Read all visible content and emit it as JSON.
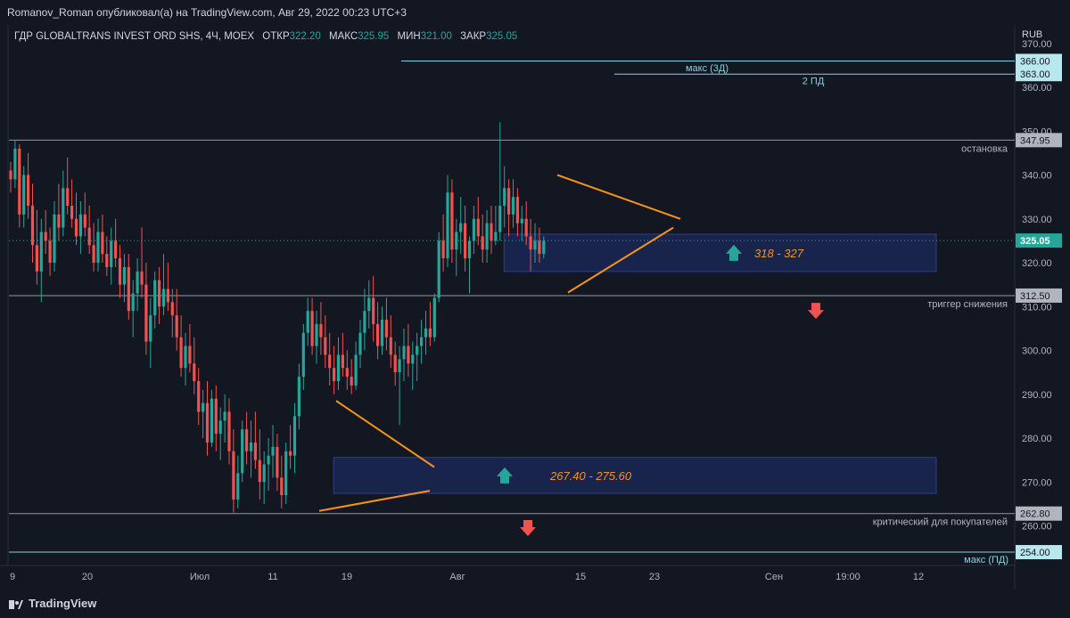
{
  "header": {
    "publisher_line": "Romanov_Roman опубликовал(а) на TradingView.com, Авг 29, 2022 00:23 UTC+3"
  },
  "footer": {
    "brand": "TradingView"
  },
  "colors": {
    "background": "#131722",
    "up": "#26a69a",
    "down": "#ef5350",
    "orange": "#f7931a",
    "cyan": "#7fd6e0",
    "zone_fill": "#1c2a5c",
    "zone_stroke": "#2a3f8a"
  },
  "chart_data": {
    "type": "candlestick",
    "symbol_line": {
      "name": "ГДР GLOBALTRANS INVEST ORD SHS, 4Ч, MOEX",
      "open_label": "ОТКР",
      "open": "322.20",
      "high_label": "МАКС",
      "high": "325.95",
      "low_label": "МИН",
      "low": "321.00",
      "close_label": "ЗАКР",
      "close": "325.05"
    },
    "currency": "RUB",
    "ylim": [
      250,
      370
    ],
    "yticks": [
      "260.00",
      "270.00",
      "280.00",
      "290.00",
      "300.00",
      "310.00",
      "320.00",
      "330.00",
      "340.00",
      "350.00",
      "360.00",
      "370.00"
    ],
    "xticks": [
      "9",
      "20",
      "Июл",
      "11",
      "19",
      "Авг",
      "15",
      "23",
      "Сен",
      "19:00",
      "12"
    ],
    "last_price": "325.05",
    "levels": [
      {
        "value": 366.0,
        "label": "366.00",
        "kind": "cyan",
        "from_bar": 72,
        "text": ""
      },
      {
        "value": 363.0,
        "label": "363.00",
        "kind": "cyan",
        "from_bar": 112,
        "text": "макс (3Д)"
      },
      {
        "value": 347.95,
        "label": "347.95",
        "kind": "gray",
        "from_bar": 0,
        "text": "остановка"
      },
      {
        "value": 312.5,
        "label": "312.50",
        "kind": "gray",
        "from_bar": 0,
        "text": "триггер снижения"
      },
      {
        "value": 262.8,
        "label": "262.80",
        "kind": "gray",
        "from_bar": 0,
        "text": "критический для покупателей"
      },
      {
        "value": 254.0,
        "label": "254.00",
        "kind": "cyan",
        "from_bar": 0,
        "text": "макс (ПД)"
      }
    ],
    "extra_texts": [
      {
        "text": "2 ПД",
        "value": 361.5,
        "bar": 148
      }
    ],
    "zones": [
      {
        "top": 326.5,
        "bottom": 318.0,
        "from_bar": 117,
        "to_bar": 172,
        "label": "318 - 327",
        "arrow": "up"
      },
      {
        "top": 275.6,
        "bottom": 267.4,
        "from_bar": 78,
        "to_bar": 172,
        "label": "267.40 - 275.60",
        "arrow": "up"
      }
    ],
    "down_arrows": [
      {
        "bar": 150,
        "value": 309.0
      },
      {
        "bar": 97,
        "value": 259.5
      }
    ],
    "triangles": [
      {
        "points": [
          [
            60,
            288
          ],
          [
            72,
            277
          ],
          [
            80,
            273
          ],
          [
            79,
            268
          ],
          [
            58,
            263
          ]
        ]
      },
      {
        "points": [
          [
            101,
            340
          ],
          [
            125,
            330
          ],
          [
            122,
            329
          ],
          [
            104,
            313
          ]
        ]
      }
    ],
    "candles": [
      [
        341,
        343,
        336,
        339
      ],
      [
        339,
        348,
        337,
        346
      ],
      [
        346,
        347,
        328,
        331
      ],
      [
        331,
        342,
        328,
        340
      ],
      [
        340,
        345,
        330,
        333
      ],
      [
        333,
        338,
        320,
        324
      ],
      [
        324,
        332,
        315,
        318
      ],
      [
        318,
        330,
        311,
        327
      ],
      [
        327,
        332,
        322,
        325
      ],
      [
        325,
        328,
        317,
        320
      ],
      [
        320,
        334,
        318,
        331
      ],
      [
        331,
        338,
        325,
        328
      ],
      [
        328,
        341,
        326,
        337
      ],
      [
        337,
        344,
        331,
        333
      ],
      [
        333,
        339,
        328,
        330
      ],
      [
        330,
        336,
        324,
        326
      ],
      [
        326,
        334,
        322,
        331
      ],
      [
        331,
        336,
        326,
        328
      ],
      [
        328,
        333,
        322,
        324
      ],
      [
        324,
        329,
        318,
        320
      ],
      [
        320,
        330,
        318,
        327
      ],
      [
        327,
        331,
        320,
        322
      ],
      [
        322,
        326,
        317,
        319
      ],
      [
        319,
        328,
        315,
        325
      ],
      [
        325,
        330,
        319,
        321
      ],
      [
        321,
        324,
        312,
        315
      ],
      [
        315,
        322,
        311,
        319
      ],
      [
        319,
        322,
        307,
        309
      ],
      [
        309,
        316,
        303,
        313
      ],
      [
        313,
        321,
        309,
        318
      ],
      [
        318,
        328,
        312,
        315
      ],
      [
        315,
        320,
        299,
        302
      ],
      [
        302,
        312,
        296,
        308
      ],
      [
        308,
        318,
        305,
        316
      ],
      [
        316,
        319,
        306,
        310
      ],
      [
        310,
        322,
        308,
        314
      ],
      [
        314,
        320,
        309,
        311
      ],
      [
        311,
        314,
        303,
        308
      ],
      [
        308,
        314,
        300,
        303
      ],
      [
        303,
        308,
        294,
        296
      ],
      [
        296,
        304,
        292,
        301
      ],
      [
        301,
        306,
        295,
        297
      ],
      [
        297,
        303,
        290,
        293
      ],
      [
        293,
        296,
        283,
        286
      ],
      [
        286,
        291,
        280,
        288
      ],
      [
        288,
        293,
        276,
        279
      ],
      [
        279,
        291,
        278,
        289
      ],
      [
        289,
        292,
        277,
        281
      ],
      [
        281,
        287,
        275,
        284
      ],
      [
        284,
        290,
        279,
        286
      ],
      [
        286,
        289,
        274,
        277
      ],
      [
        277,
        282,
        263,
        266
      ],
      [
        266,
        276,
        264,
        272
      ],
      [
        272,
        284,
        270,
        282
      ],
      [
        282,
        286,
        274,
        277
      ],
      [
        277,
        284,
        271,
        279
      ],
      [
        279,
        286,
        273,
        275
      ],
      [
        275,
        282,
        266,
        270
      ],
      [
        270,
        277,
        265,
        274
      ],
      [
        274,
        280,
        268,
        276
      ],
      [
        276,
        283,
        271,
        278
      ],
      [
        278,
        281,
        268,
        271
      ],
      [
        271,
        276,
        264,
        267
      ],
      [
        267,
        279,
        265,
        277
      ],
      [
        277,
        283,
        273,
        276
      ],
      [
        276,
        288,
        272,
        285
      ],
      [
        285,
        297,
        282,
        294
      ],
      [
        294,
        306,
        291,
        304
      ],
      [
        304,
        312,
        301,
        309
      ],
      [
        309,
        312,
        299,
        301
      ],
      [
        301,
        309,
        297,
        306
      ],
      [
        306,
        311,
        299,
        303
      ],
      [
        303,
        308,
        296,
        299
      ],
      [
        299,
        304,
        292,
        296
      ],
      [
        296,
        301,
        290,
        293
      ],
      [
        293,
        303,
        291,
        299
      ],
      [
        299,
        304,
        294,
        296
      ],
      [
        296,
        300,
        291,
        294
      ],
      [
        294,
        298,
        290,
        292
      ],
      [
        292,
        302,
        291,
        299
      ],
      [
        299,
        307,
        296,
        304
      ],
      [
        304,
        314,
        300,
        309
      ],
      [
        309,
        316,
        305,
        312
      ],
      [
        312,
        317,
        302,
        306
      ],
      [
        306,
        311,
        298,
        301
      ],
      [
        301,
        310,
        299,
        307
      ],
      [
        307,
        312,
        300,
        303
      ],
      [
        303,
        308,
        296,
        299
      ],
      [
        299,
        302,
        292,
        295
      ],
      [
        295,
        301,
        283,
        298
      ],
      [
        298,
        305,
        293,
        301
      ],
      [
        301,
        306,
        294,
        297
      ],
      [
        297,
        302,
        291,
        299
      ],
      [
        299,
        304,
        293,
        301
      ],
      [
        301,
        307,
        297,
        303
      ],
      [
        303,
        309,
        299,
        305
      ],
      [
        305,
        311,
        301,
        303
      ],
      [
        303,
        313,
        302,
        312
      ],
      [
        312,
        327,
        311,
        325
      ],
      [
        325,
        331,
        318,
        321
      ],
      [
        321,
        340,
        319,
        336
      ],
      [
        336,
        339,
        320,
        323
      ],
      [
        323,
        330,
        317,
        327
      ],
      [
        327,
        335,
        322,
        329
      ],
      [
        329,
        333,
        318,
        321
      ],
      [
        321,
        326,
        313,
        325
      ],
      [
        325,
        333,
        322,
        330
      ],
      [
        330,
        335,
        324,
        326
      ],
      [
        326,
        331,
        320,
        323
      ],
      [
        323,
        332,
        320,
        329
      ],
      [
        329,
        333,
        322,
        325
      ],
      [
        325,
        333,
        324,
        327
      ],
      [
        327,
        352,
        325,
        333
      ],
      [
        333,
        342,
        328,
        337
      ],
      [
        337,
        339,
        326,
        331
      ],
      [
        331,
        339,
        328,
        335
      ],
      [
        335,
        337,
        326,
        329
      ],
      [
        329,
        333,
        325,
        330
      ],
      [
        330,
        334,
        324,
        326
      ],
      [
        326,
        330,
        318,
        323
      ],
      [
        323,
        329,
        320,
        325
      ],
      [
        325,
        328,
        320,
        322
      ],
      [
        322,
        326,
        321,
        325
      ]
    ]
  }
}
